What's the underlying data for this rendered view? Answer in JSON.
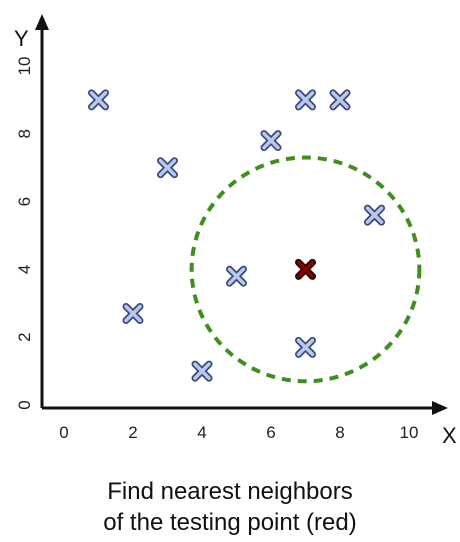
{
  "chart_data": {
    "type": "scatter",
    "xlabel": "X",
    "ylabel": "Y",
    "xlim": [
      0,
      11
    ],
    "ylim": [
      0,
      11
    ],
    "xticks": [
      0,
      2,
      4,
      6,
      8,
      10
    ],
    "yticks": [
      0,
      2,
      4,
      6,
      8,
      10
    ],
    "grid": false,
    "series": [
      {
        "marker": "x",
        "color": "#6d7fb5",
        "points": [
          {
            "x": 1,
            "y": 9
          },
          {
            "x": 3,
            "y": 7
          },
          {
            "x": 2,
            "y": 2.7
          },
          {
            "x": 4,
            "y": 1
          },
          {
            "x": 5,
            "y": 3.8
          },
          {
            "x": 6,
            "y": 7.8
          },
          {
            "x": 7,
            "y": 9
          },
          {
            "x": 8,
            "y": 9
          },
          {
            "x": 9,
            "y": 5.6
          },
          {
            "x": 7,
            "y": 1.7
          }
        ]
      },
      {
        "marker": "x",
        "color": "#8b0000",
        "points": [
          {
            "x": 7,
            "y": 4
          }
        ]
      }
    ],
    "annotations": {
      "neighborhood_circle": {
        "center_x": 7,
        "center_y": 4,
        "radius": 3.3,
        "color": "#3f8f1f",
        "style": "dashed"
      }
    },
    "caption_lines": [
      "Find nearest neighbors",
      "of the testing point (red)"
    ]
  }
}
